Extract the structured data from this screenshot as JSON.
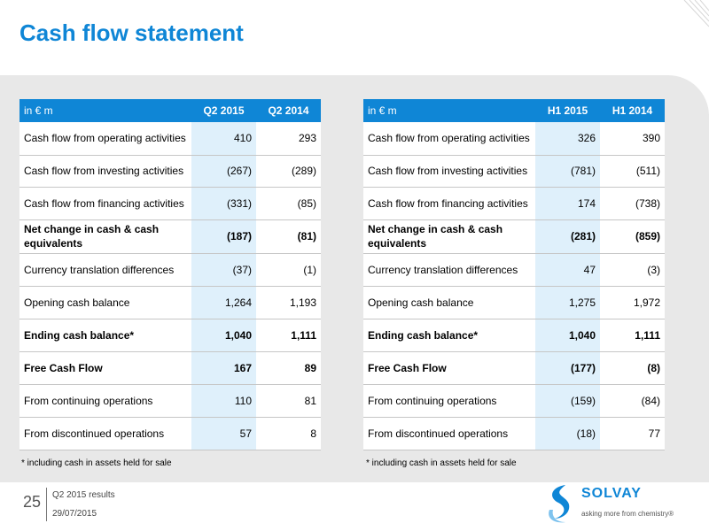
{
  "title": "Cash flow statement",
  "left_table": {
    "header": {
      "unit": "in € m",
      "col1": "Q2 2015",
      "col2": "Q2 2014"
    },
    "rows": [
      {
        "label": "Cash flow from operating activities",
        "v1": "410",
        "v2": "293",
        "bold": false
      },
      {
        "label": "Cash flow from investing activities",
        "v1": "(267)",
        "v2": "(289)",
        "bold": false
      },
      {
        "label": "Cash flow from financing activities",
        "v1": "(331)",
        "v2": "(85)",
        "bold": false
      },
      {
        "label": "Net change in cash & cash equivalents",
        "v1": "(187)",
        "v2": "(81)",
        "bold": true
      },
      {
        "label": "Currency translation differences",
        "v1": "(37)",
        "v2": "(1)",
        "bold": false
      },
      {
        "label": "Opening cash balance",
        "v1": "1,264",
        "v2": "1,193",
        "bold": false
      },
      {
        "label": "Ending cash balance*",
        "v1": "1,040",
        "v2": "1,111",
        "bold": true
      },
      {
        "label": "Free Cash Flow",
        "v1": "167",
        "v2": "89",
        "bold": true
      },
      {
        "label": "From continuing operations",
        "v1": "110",
        "v2": "81",
        "bold": false
      },
      {
        "label": "From discontinued operations",
        "v1": "57",
        "v2": "8",
        "bold": false
      }
    ],
    "note": "* including cash in assets held for sale"
  },
  "right_table": {
    "header": {
      "unit": "in € m",
      "col1": "H1 2015",
      "col2": "H1 2014"
    },
    "rows": [
      {
        "label": "Cash flow from operating activities",
        "v1": "326",
        "v2": "390",
        "bold": false
      },
      {
        "label": "Cash flow from investing activities",
        "v1": "(781)",
        "v2": "(511)",
        "bold": false
      },
      {
        "label": "Cash flow from financing activities",
        "v1": "174",
        "v2": "(738)",
        "bold": false
      },
      {
        "label": "Net change in cash & cash equivalents",
        "v1": "(281)",
        "v2": "(859)",
        "bold": true
      },
      {
        "label": "Currency translation differences",
        "v1": "47",
        "v2": "(3)",
        "bold": false
      },
      {
        "label": "Opening cash balance",
        "v1": "1,275",
        "v2": "1,972",
        "bold": false
      },
      {
        "label": "Ending cash balance*",
        "v1": "1,040",
        "v2": "1,111",
        "bold": true
      },
      {
        "label": "Free Cash Flow",
        "v1": "(177)",
        "v2": "(8)",
        "bold": true
      },
      {
        "label": "From continuing operations",
        "v1": "(159)",
        "v2": "(84)",
        "bold": false
      },
      {
        "label": "From discontinued operations",
        "v1": "(18)",
        "v2": "77",
        "bold": false
      }
    ],
    "note": "* including cash in assets held for sale"
  },
  "footer": {
    "page_number": "25",
    "line1": "Q2 2015 results",
    "line2": "29/07/2015"
  },
  "logo": {
    "name": "SOLVAY",
    "tagline": "asking more from chemistry®"
  },
  "colors": {
    "accent": "#0f86d6",
    "highlight": "#dff0fb",
    "panel": "#e8e8e8"
  }
}
